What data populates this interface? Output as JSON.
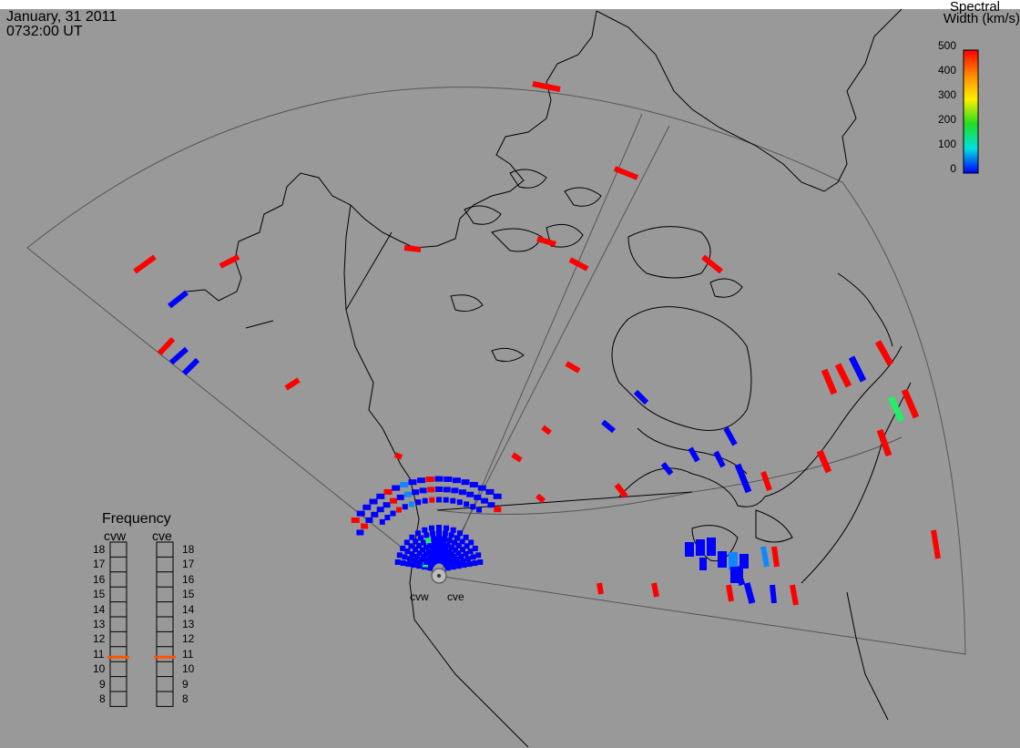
{
  "title": {
    "date": "January, 31 2011",
    "time": "0732:00 UT"
  },
  "colorbar": {
    "title_line1": "Spectral",
    "title_line2": "Width (km/s)",
    "ticks": [
      "500",
      "400",
      "300",
      "200",
      "100",
      "0"
    ],
    "colors": [
      "#ff0000",
      "#ff8800",
      "#ffee00",
      "#22dd22",
      "#00e0e0",
      "#0000ff"
    ]
  },
  "frequency": {
    "title": "Frequency",
    "radars": [
      "cvw",
      "cve"
    ],
    "scale": [
      "18",
      "17",
      "16",
      "15",
      "14",
      "13",
      "12",
      "11",
      "10",
      "9",
      "8"
    ],
    "current_mhz": [
      10.8,
      10.8
    ],
    "marker_color": "#ff5500"
  },
  "sites": [
    "cvw",
    "cve"
  ],
  "colors": {
    "background": "#999999",
    "coast": "#000000",
    "field_of_view": "#555555"
  }
}
